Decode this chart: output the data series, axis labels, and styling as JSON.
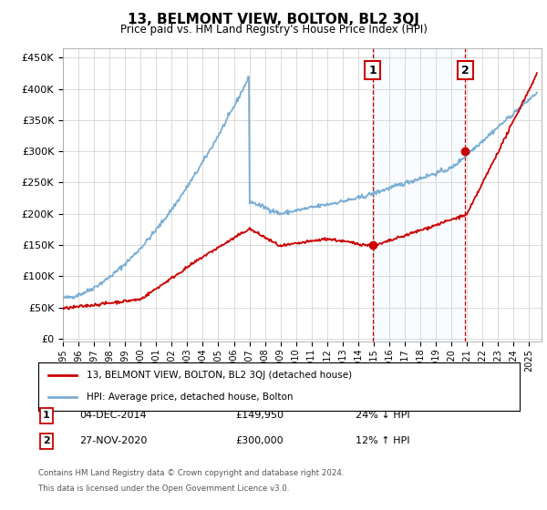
{
  "title": "13, BELMONT VIEW, BOLTON, BL2 3QJ",
  "subtitle": "Price paid vs. HM Land Registry's House Price Index (HPI)",
  "ylim": [
    0,
    450000
  ],
  "xlim_start": 1995.0,
  "xlim_end": 2025.8,
  "legend_entry1": "13, BELMONT VIEW, BOLTON, BL2 3QJ (detached house)",
  "legend_entry2": "HPI: Average price, detached house, Bolton",
  "marker1_year": 2014.92,
  "marker1_label": "1",
  "marker1_value": 149950,
  "marker1_date": "04-DEC-2014",
  "marker1_price": "£149,950",
  "marker1_hpi": "24% ↓ HPI",
  "marker2_year": 2020.9,
  "marker2_label": "2",
  "marker2_value": 300000,
  "marker2_date": "27-NOV-2020",
  "marker2_price": "£300,000",
  "marker2_hpi": "12% ↑ HPI",
  "footnote1": "Contains HM Land Registry data © Crown copyright and database right 2024.",
  "footnote2": "This data is licensed under the Open Government Licence v3.0.",
  "line_color_red": "#cc0000",
  "line_color_blue": "#7aadd4",
  "shade_color": "#ddeeff",
  "marker_box_color": "#cc0000",
  "background_color": "#ffffff",
  "grid_color": "#cccccc"
}
